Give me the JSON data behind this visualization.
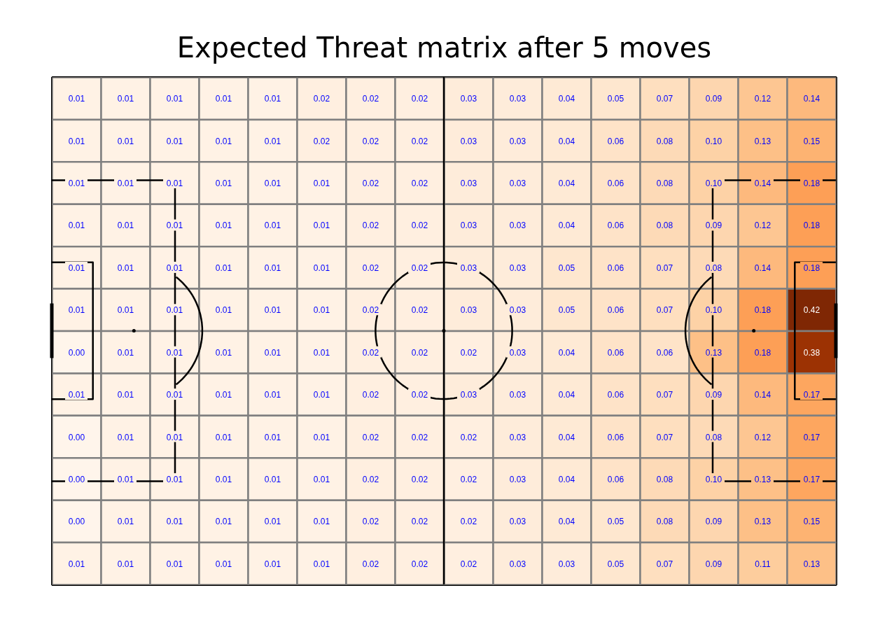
{
  "chart_data": {
    "type": "heatmap",
    "title": "Expected Threat matrix after 5 moves",
    "categories": [
      null,
      null,
      null,
      null,
      null,
      null,
      null,
      null,
      null,
      null,
      null,
      null,
      null,
      null,
      null,
      null
    ],
    "y_categories": [
      null,
      null,
      null,
      null,
      null,
      null,
      null,
      null,
      null,
      null,
      null,
      null
    ],
    "cells": [
      [
        0.01,
        0.01,
        0.01,
        0.01,
        0.01,
        0.02,
        0.02,
        0.02,
        0.03,
        0.03,
        0.04,
        0.05,
        0.07,
        0.09,
        0.12,
        0.14
      ],
      [
        0.01,
        0.01,
        0.01,
        0.01,
        0.01,
        0.02,
        0.02,
        0.02,
        0.03,
        0.03,
        0.04,
        0.06,
        0.08,
        0.1,
        0.13,
        0.15
      ],
      [
        0.01,
        0.01,
        0.01,
        0.01,
        0.01,
        0.01,
        0.02,
        0.02,
        0.03,
        0.03,
        0.04,
        0.06,
        0.08,
        0.1,
        0.14,
        0.18
      ],
      [
        0.01,
        0.01,
        0.01,
        0.01,
        0.01,
        0.01,
        0.02,
        0.02,
        0.03,
        0.03,
        0.04,
        0.06,
        0.08,
        0.09,
        0.12,
        0.18
      ],
      [
        0.01,
        0.01,
        0.01,
        0.01,
        0.01,
        0.01,
        0.02,
        0.02,
        0.03,
        0.03,
        0.05,
        0.06,
        0.07,
        0.08,
        0.14,
        0.18
      ],
      [
        0.01,
        0.01,
        0.01,
        0.01,
        0.01,
        0.01,
        0.02,
        0.02,
        0.03,
        0.03,
        0.05,
        0.06,
        0.07,
        0.1,
        0.18,
        0.42
      ],
      [
        0.0,
        0.01,
        0.01,
        0.01,
        0.01,
        0.01,
        0.02,
        0.02,
        0.02,
        0.03,
        0.04,
        0.06,
        0.06,
        0.13,
        0.18,
        0.38
      ],
      [
        0.01,
        0.01,
        0.01,
        0.01,
        0.01,
        0.01,
        0.02,
        0.02,
        0.03,
        0.03,
        0.04,
        0.06,
        0.07,
        0.09,
        0.14,
        0.17
      ],
      [
        0.0,
        0.01,
        0.01,
        0.01,
        0.01,
        0.01,
        0.02,
        0.02,
        0.02,
        0.03,
        0.04,
        0.06,
        0.07,
        0.08,
        0.12,
        0.17
      ],
      [
        0.0,
        0.01,
        0.01,
        0.01,
        0.01,
        0.01,
        0.02,
        0.02,
        0.02,
        0.03,
        0.04,
        0.06,
        0.08,
        0.1,
        0.13,
        0.17
      ],
      [
        0.0,
        0.01,
        0.01,
        0.01,
        0.01,
        0.01,
        0.02,
        0.02,
        0.02,
        0.03,
        0.04,
        0.05,
        0.08,
        0.09,
        0.13,
        0.15
      ],
      [
        0.01,
        0.01,
        0.01,
        0.01,
        0.01,
        0.01,
        0.02,
        0.02,
        0.02,
        0.03,
        0.03,
        0.05,
        0.07,
        0.09,
        0.11,
        0.13
      ]
    ],
    "cell_labels": [
      [
        "0.01",
        "0.01",
        "0.01",
        "0.01",
        "0.01",
        "0.02",
        "0.02",
        "0.02",
        "0.03",
        "0.03",
        "0.04",
        "0.05",
        "0.07",
        "0.09",
        "0.12",
        "0.14"
      ],
      [
        "0.01",
        "0.01",
        "0.01",
        "0.01",
        "0.01",
        "0.02",
        "0.02",
        "0.02",
        "0.03",
        "0.03",
        "0.04",
        "0.06",
        "0.08",
        "0.10",
        "0.13",
        "0.15"
      ],
      [
        "0.01",
        "0.01",
        "0.01",
        "0.01",
        "0.01",
        "0.01",
        "0.02",
        "0.02",
        "0.03",
        "0.03",
        "0.04",
        "0.06",
        "0.08",
        "0.10",
        "0.14",
        "0.18"
      ],
      [
        "0.01",
        "0.01",
        "0.01",
        "0.01",
        "0.01",
        "0.01",
        "0.02",
        "0.02",
        "0.03",
        "0.03",
        "0.04",
        "0.06",
        "0.08",
        "0.09",
        "0.12",
        "0.18"
      ],
      [
        "0.01",
        "0.01",
        "0.01",
        "0.01",
        "0.01",
        "0.01",
        "0.02",
        "0.02",
        "0.03",
        "0.03",
        "0.05",
        "0.06",
        "0.07",
        "0.08",
        "0.14",
        "0.18"
      ],
      [
        "0.01",
        "0.01",
        "0.01",
        "0.01",
        "0.01",
        "0.01",
        "0.02",
        "0.02",
        "0.03",
        "0.03",
        "0.05",
        "0.06",
        "0.07",
        "0.10",
        "0.18",
        "0.42"
      ],
      [
        "0.00",
        "0.01",
        "0.01",
        "0.01",
        "0.01",
        "0.01",
        "0.02",
        "0.02",
        "0.02",
        "0.03",
        "0.04",
        "0.06",
        "0.06",
        "0.13",
        "0.18",
        "0.38"
      ],
      [
        "0.01",
        "0.01",
        "0.01",
        "0.01",
        "0.01",
        "0.01",
        "0.02",
        "0.02",
        "0.03",
        "0.03",
        "0.04",
        "0.06",
        "0.07",
        "0.09",
        "0.14",
        "0.17"
      ],
      [
        "0.00",
        "0.01",
        "0.01",
        "0.01",
        "0.01",
        "0.01",
        "0.02",
        "0.02",
        "0.02",
        "0.03",
        "0.04",
        "0.06",
        "0.07",
        "0.08",
        "0.12",
        "0.17"
      ],
      [
        "0.00",
        "0.01",
        "0.01",
        "0.01",
        "0.01",
        "0.01",
        "0.02",
        "0.02",
        "0.02",
        "0.03",
        "0.04",
        "0.06",
        "0.08",
        "0.10",
        "0.13",
        "0.17"
      ],
      [
        "0.00",
        "0.01",
        "0.01",
        "0.01",
        "0.01",
        "0.01",
        "0.02",
        "0.02",
        "0.02",
        "0.03",
        "0.04",
        "0.05",
        "0.08",
        "0.09",
        "0.13",
        "0.15"
      ],
      [
        "0.01",
        "0.01",
        "0.01",
        "0.01",
        "0.01",
        "0.01",
        "0.02",
        "0.02",
        "0.02",
        "0.03",
        "0.03",
        "0.05",
        "0.07",
        "0.09",
        "0.11",
        "0.13"
      ]
    ]
  }
}
